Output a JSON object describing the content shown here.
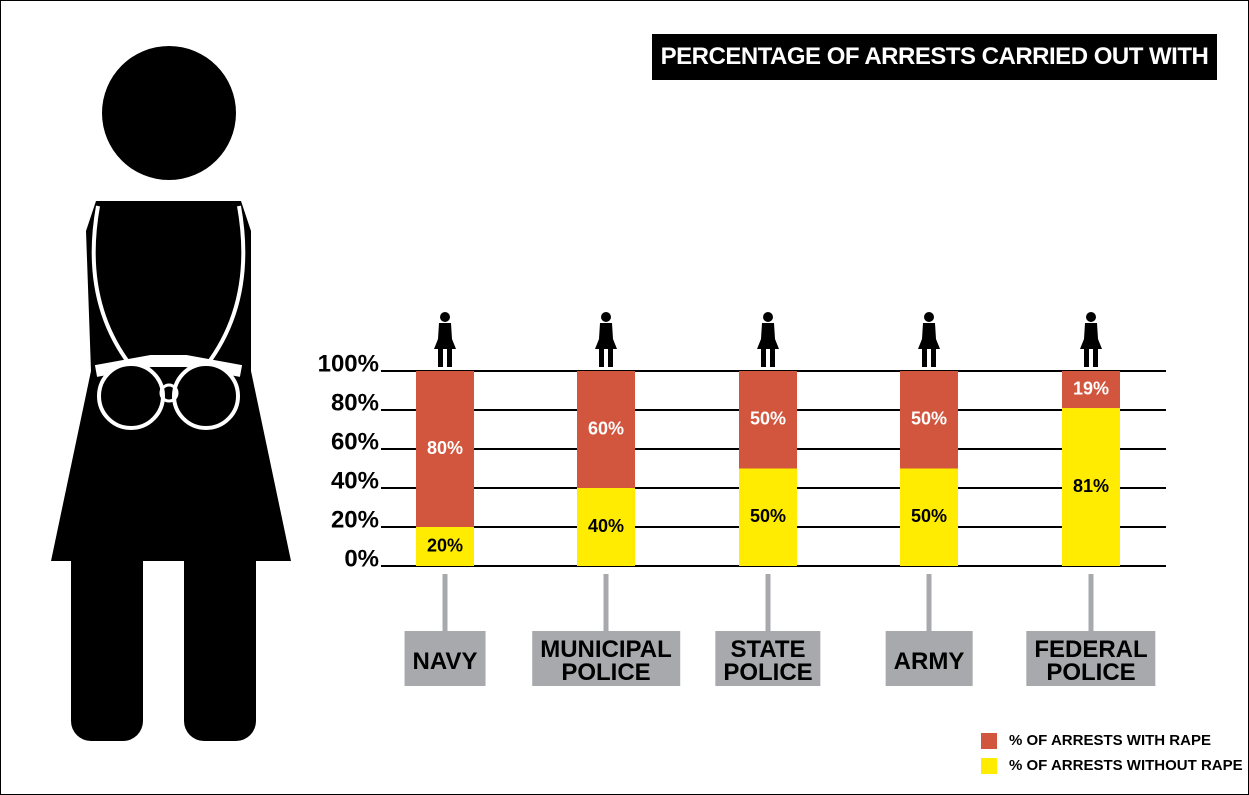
{
  "chart_data": {
    "type": "stacked-bar",
    "title": "PERCENTAGE OF ARRESTS CARRIED OUT WITH RAPE",
    "categories": [
      "NAVY",
      "MUNICIPAL\nPOLICE",
      "STATE\nPOLICE",
      "ARMY",
      "FEDERAL\nPOLICE"
    ],
    "series": [
      {
        "name": "% OF ARRESTS WITH RAPE",
        "color": "#d2553d",
        "values": [
          80,
          60,
          50,
          50,
          19
        ],
        "value_labels": [
          "80%",
          "60%",
          "50%",
          "50%",
          "19%"
        ]
      },
      {
        "name": "% OF ARRESTS WITHOUT RAPE",
        "color": "#ffec00",
        "values": [
          20,
          40,
          50,
          50,
          81
        ],
        "value_labels": [
          "20%",
          "40%",
          "50%",
          "50%",
          "81%"
        ]
      }
    ],
    "ylim": [
      0,
      100
    ],
    "yticks": [
      {
        "value": 0,
        "label": "0%"
      },
      {
        "value": 20,
        "label": "20%"
      },
      {
        "value": 40,
        "label": "40%"
      },
      {
        "value": 60,
        "label": "60%"
      },
      {
        "value": 80,
        "label": "80%"
      },
      {
        "value": 100,
        "label": "100%"
      }
    ],
    "grid": true
  }
}
